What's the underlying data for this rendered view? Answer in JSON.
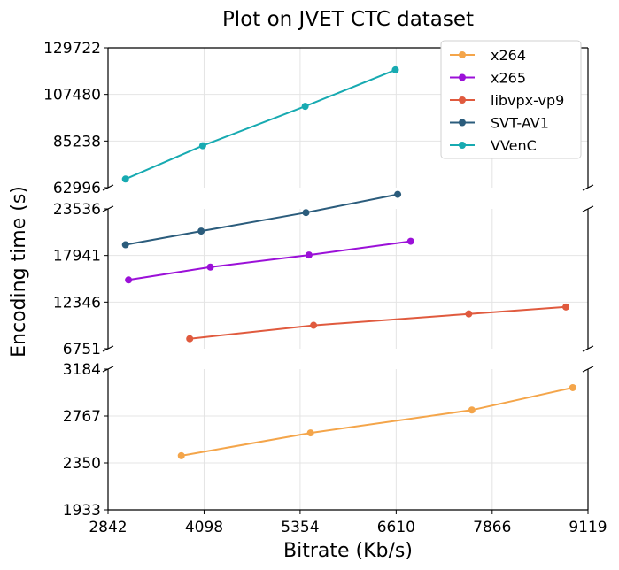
{
  "chart_data": {
    "type": "line",
    "title": "Plot on JVET CTC dataset",
    "xlabel": "Bitrate (Kb/s)",
    "ylabel": "Encoding time (s)",
    "broken_y_axis": true,
    "grid": true,
    "legend_position": "top-right",
    "x_ticks": [
      2842,
      4098,
      5354,
      6610,
      7866,
      9119
    ],
    "xlim": [
      2842,
      9119
    ],
    "panels": [
      {
        "name": "top",
        "ylim": [
          62996,
          129722
        ],
        "y_ticks": [
          62996,
          85238,
          107480,
          129722
        ]
      },
      {
        "name": "middle",
        "ylim": [
          6751,
          23536
        ],
        "y_ticks": [
          6751,
          12346,
          17941,
          23536
        ]
      },
      {
        "name": "bottom",
        "ylim": [
          1933,
          3184
        ],
        "y_ticks": [
          1933,
          2350,
          2767,
          3184
        ]
      }
    ],
    "series": [
      {
        "name": "x264",
        "color": "#f4a54a",
        "panel": "bottom",
        "x": [
          3800,
          5490,
          7600,
          8920
        ],
        "y": [
          2414,
          2617,
          2820,
          3019
        ]
      },
      {
        "name": "x265",
        "color": "#9b10d8",
        "panel": "middle",
        "x": [
          3110,
          4180,
          5470,
          6800
        ],
        "y": [
          15006,
          16550,
          18004,
          19650
        ]
      },
      {
        "name": "libvpx-vp9",
        "color": "#e05a3e",
        "panel": "middle",
        "x": [
          3910,
          5530,
          7560,
          8830
        ],
        "y": [
          7950,
          9560,
          10930,
          11760
        ]
      },
      {
        "name": "SVT-AV1",
        "color": "#2b5c7c",
        "panel": "middle",
        "x": [
          3070,
          4060,
          5430,
          6630
        ],
        "y": [
          19230,
          20870,
          23090,
          25280
        ]
      },
      {
        "name": "VVenC",
        "color": "#17aab1",
        "panel": "top",
        "x": [
          3070,
          4080,
          5420,
          6600
        ],
        "y": [
          67100,
          83000,
          101800,
          119200
        ]
      }
    ]
  }
}
